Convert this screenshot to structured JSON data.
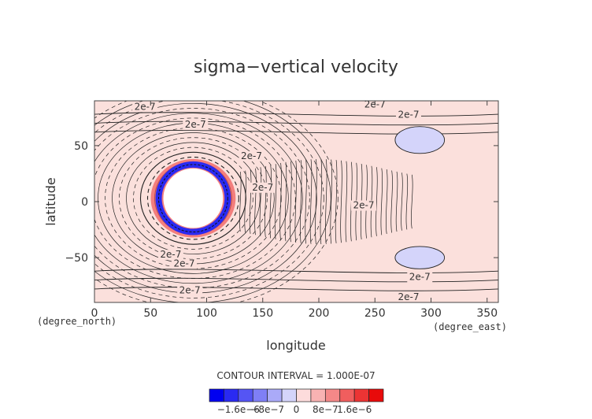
{
  "chart_data": {
    "type": "heatmap",
    "title": "sigma−vertical velocity",
    "xlabel": "longitude",
    "ylabel": "latitude",
    "x_unit": "(degree_east)",
    "y_unit": "(degree_north)",
    "xlim": [
      0,
      360
    ],
    "ylim": [
      -90,
      90
    ],
    "x_ticks": [
      "0",
      "50",
      "100",
      "150",
      "200",
      "250",
      "300",
      "350"
    ],
    "y_ticks": [
      "50",
      "0",
      "−50"
    ],
    "contour_interval_text": "CONTOUR INTERVAL = 1.000E-07",
    "contour_labels": [
      "2e-7",
      "2e-7",
      "2e-7",
      "2e-7",
      "2e-7",
      "2e-7",
      "2e-7",
      "2e-7",
      "2e-7",
      "2e-7",
      "2e-7",
      "2e-7"
    ],
    "colorbar": {
      "tick_labels": [
        "−1.6e−6",
        "−8e−7",
        "0",
        "8e−7",
        "1.6e−6"
      ],
      "colors": [
        "#0000f0",
        "#2a2af2",
        "#5555f4",
        "#7f7ff6",
        "#aaaaf8",
        "#d4d4fa",
        "#fddcdc",
        "#f8b2b2",
        "#f48888",
        "#f05e5e",
        "#ec3434",
        "#e80a0a"
      ]
    },
    "background_color": "#fbe0dc",
    "features": [
      {
        "kind": "strong-descent-ring",
        "lon": 88,
        "lat": 3,
        "lon_radius": 28,
        "lat_radius": 28
      },
      {
        "kind": "negative-patch",
        "lon": 290,
        "lat": 55,
        "lon_radius": 22,
        "lat_radius": 12
      },
      {
        "kind": "negative-patch",
        "lon": 290,
        "lat": -50,
        "lon_radius": 22,
        "lat_radius": 10
      }
    ]
  }
}
